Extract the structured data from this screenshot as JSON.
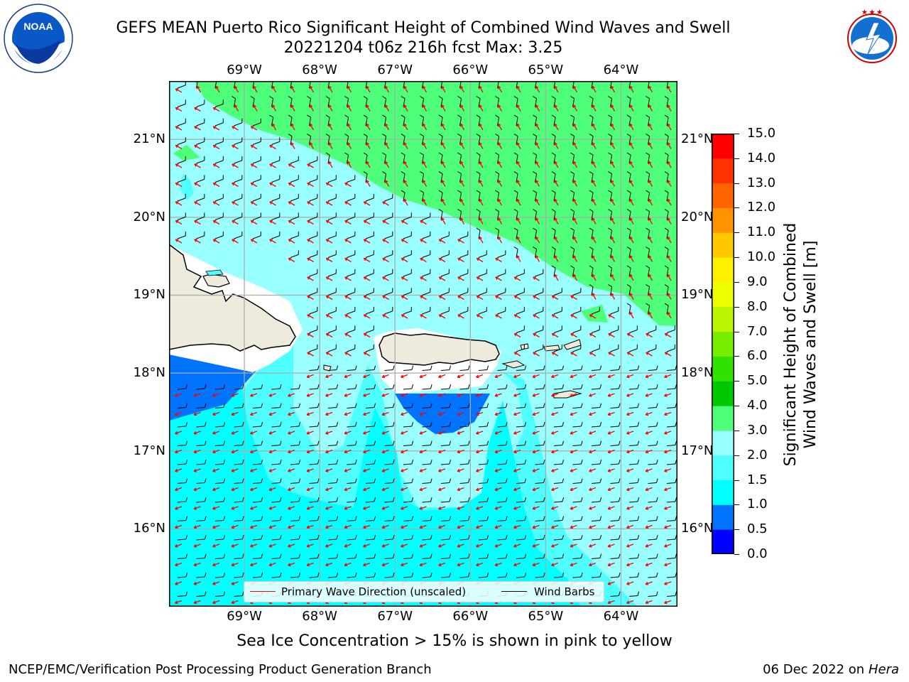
{
  "title": {
    "line1": "GEFS MEAN Puerto Rico Significant Height of Combined Wind Waves and Swell",
    "line2": "20221204 t06z 216h fcst   Max: 3.25"
  },
  "logos": {
    "left": {
      "name": "noaa-logo",
      "text": "NOAA",
      "ring_text": "NATIONAL OCEANIC AND ATMOSPHERIC ADMINISTRATION · U.S. DEPARTMENT OF COMMERCE"
    },
    "right": {
      "name": "nws-logo",
      "ring_text": "NATIONAL WEATHER SERVICE"
    }
  },
  "map": {
    "lon_labels": [
      "69°W",
      "68°W",
      "67°W",
      "66°W",
      "65°W",
      "64°W"
    ],
    "lat_labels": [
      "21°N",
      "20°N",
      "19°N",
      "18°N",
      "17°N",
      "16°N"
    ],
    "lon_range": [
      -70.0,
      -63.25
    ],
    "lat_range": [
      15.0,
      21.75
    ],
    "grid": true,
    "land_color": "#efebdc",
    "barb_color": "#000000",
    "wave_arrow_color": "#ff0000"
  },
  "legend": {
    "primary_wave": "Primary Wave Direction (unscaled)",
    "wind_barbs": "Wind Barbs"
  },
  "colorbar": {
    "label_line1": "Significant Height of Combined",
    "label_line2": "Wind Waves and Swell [m]",
    "ticks": [
      "15.0",
      "14.0",
      "13.0",
      "12.0",
      "11.0",
      "10.0",
      "9.0",
      "8.0",
      "7.0",
      "6.0",
      "5.0",
      "4.0",
      "3.0",
      "2.0",
      "1.5",
      "1.0",
      "0.5",
      "0.0"
    ],
    "colors_bottom_to_top": [
      "#0000ff",
      "#0073ff",
      "#00ffff",
      "#4dffff",
      "#9affff",
      "#4dff79",
      "#00c800",
      "#31e200",
      "#77ee00",
      "#bbf400",
      "#eeff00",
      "#fff000",
      "#ffc800",
      "#ff9400",
      "#ff6400",
      "#ff3200",
      "#ff0000"
    ]
  },
  "note": "Sea Ice Concentration > 15% is shown in pink to yellow",
  "footer": {
    "left": "NCEP/EMC/Verification Post Processing Product Generation Branch",
    "right_prefix": "06 Dec 2022 on",
    "right_host": "Hera"
  }
}
